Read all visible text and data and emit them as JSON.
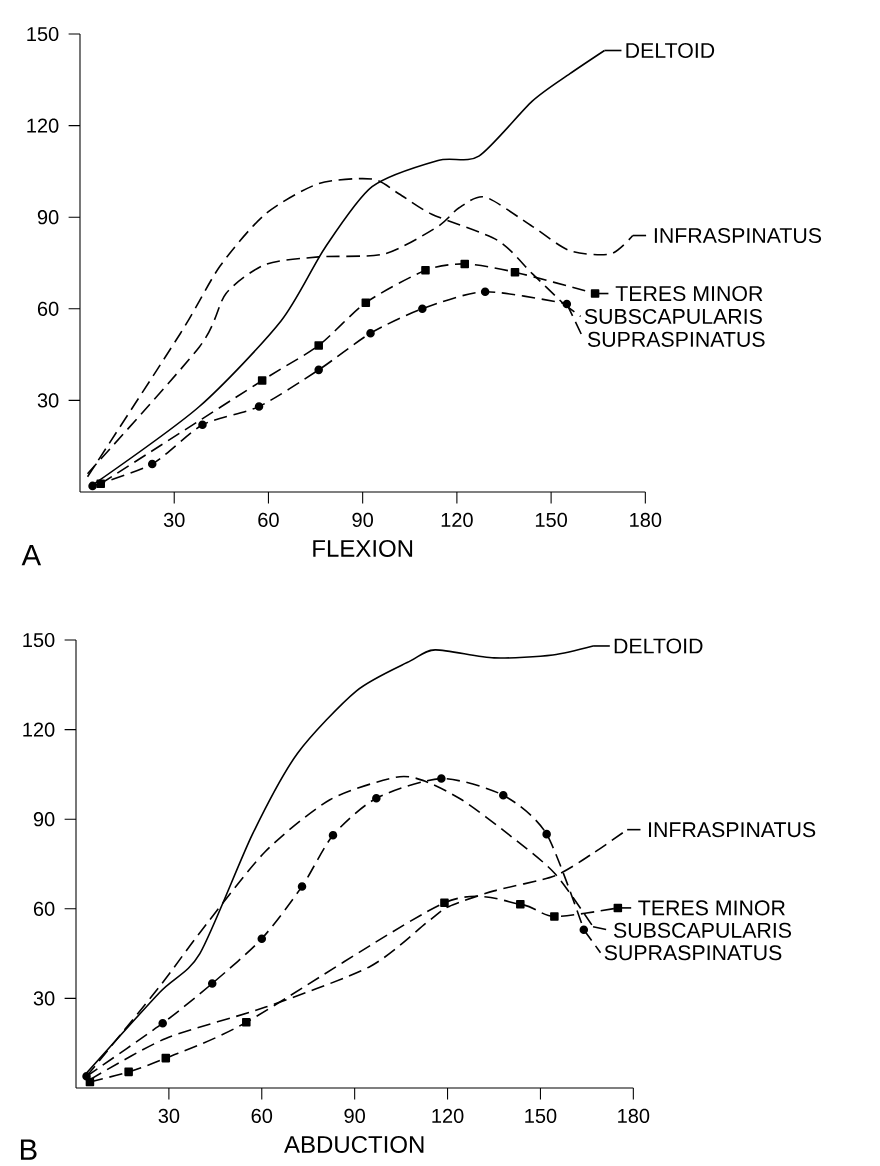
{
  "chart_data": [
    {
      "type": "line",
      "xlabel": "FLEXION",
      "annotations": [
        "A"
      ],
      "xlim": [
        0,
        180
      ],
      "ylim": [
        0,
        150
      ],
      "xticks": [
        30,
        60,
        90,
        120,
        150,
        180
      ],
      "yticks": [
        30,
        60,
        90,
        120,
        150
      ],
      "grid": false,
      "legend": "right",
      "series": [
        {
          "name": "DELTOID",
          "color": "#000000",
          "line_style": "solid",
          "marker": "none",
          "x": [
            4.6,
            38,
            64,
            78,
            93,
            114,
            127,
            144,
            156,
            167
          ],
          "values": [
            2.7,
            28,
            56,
            80,
            100,
            108.6,
            110,
            128,
            137,
            144.6
          ]
        },
        {
          "name": "INFRASPINATUS",
          "color": "#000000",
          "line_style": "dashed",
          "marker": "none",
          "x": [
            2.4,
            38,
            46.5,
            59,
            76,
            97,
            114,
            120.6,
            129,
            144,
            156,
            169,
            176
          ],
          "values": [
            6,
            47.5,
            65,
            74.5,
            77,
            78,
            87,
            93,
            96.6,
            87,
            79,
            78,
            84
          ]
        },
        {
          "name": "TERES MINOR",
          "color": "#000000",
          "line_style": "dashed",
          "marker": "square",
          "x": [
            6.6,
            58,
            76,
            91,
            110,
            122.5,
            138.5,
            164
          ],
          "values": [
            2.7,
            36.5,
            48,
            62,
            72.6,
            74.7,
            72,
            65
          ]
        },
        {
          "name": "SUBSCAPULARIS",
          "color": "#000000",
          "line_style": "dashed",
          "marker": "none",
          "x": [
            2.4,
            32,
            44.6,
            59,
            76,
            93,
            101.5,
            112,
            133,
            144,
            154
          ],
          "values": [
            5,
            52,
            74,
            91,
            101,
            102.5,
            97.7,
            91,
            82.4,
            71.5,
            61.6
          ]
        },
        {
          "name": "SUPRASPINATUS",
          "color": "#000000",
          "line_style": "dashed",
          "marker": "circle",
          "x": [
            4,
            23,
            39,
            57,
            76,
            92.5,
            109,
            129,
            155
          ],
          "values": [
            2,
            9.2,
            22,
            28,
            40,
            52,
            60,
            65.6,
            61.6
          ]
        }
      ]
    },
    {
      "type": "line",
      "xlabel": "ABDUCTION",
      "annotations": [
        "B"
      ],
      "xlim": [
        0,
        180
      ],
      "ylim": [
        0,
        150
      ],
      "xticks": [
        30,
        60,
        90,
        120,
        150,
        180
      ],
      "yticks": [
        30,
        60,
        90,
        120,
        150
      ],
      "grid": false,
      "legend": "right",
      "series": [
        {
          "name": "DELTOID",
          "color": "#000000",
          "line_style": "solid",
          "marker": "none",
          "x": [
            3.4,
            27,
            40,
            57,
            71.5,
            90.6,
            108,
            116,
            135,
            154,
            167
          ],
          "values": [
            5,
            32,
            45,
            85,
            112,
            133,
            143,
            146.7,
            144,
            145,
            148
          ]
        },
        {
          "name": "INFRASPINATUS",
          "color": "#000000",
          "line_style": "dashed",
          "marker": "none",
          "x": [
            4.5,
            29,
            61,
            95,
            114,
            120.5,
            135,
            154.5,
            167,
            178
          ],
          "values": [
            2.8,
            16.6,
            27,
            40.7,
            56,
            60.8,
            66,
            71,
            78.6,
            86.5
          ]
        },
        {
          "name": "TERES MINOR",
          "color": "#000000",
          "line_style": "dashed",
          "marker": "square",
          "x": [
            4.5,
            17,
            29,
            55,
            119,
            143.5,
            154.5,
            175
          ],
          "values": [
            2,
            5.4,
            10,
            22,
            62,
            61.5,
            57.4,
            60.3
          ]
        },
        {
          "name": "SUPRASPINATUS",
          "color": "#000000",
          "line_style": "dashed",
          "marker": "circle",
          "x": [
            3.4,
            28,
            44,
            60,
            73,
            83,
            97,
            118,
            138,
            152,
            164
          ],
          "values": [
            3.9,
            21.7,
            35,
            50,
            67.5,
            84.6,
            97,
            103.6,
            98,
            85,
            53
          ]
        },
        {
          "name": "SUBSCAPULARIS",
          "color": "#000000",
          "line_style": "dashed",
          "marker": "none",
          "x": [
            3.4,
            27,
            40,
            61,
            82,
            103,
            112,
            124.6,
            139.6,
            154.5,
            167
          ],
          "values": [
            3.9,
            34,
            52,
            79,
            96.5,
            104,
            103,
            96.5,
            85,
            72,
            54
          ]
        }
      ]
    }
  ]
}
